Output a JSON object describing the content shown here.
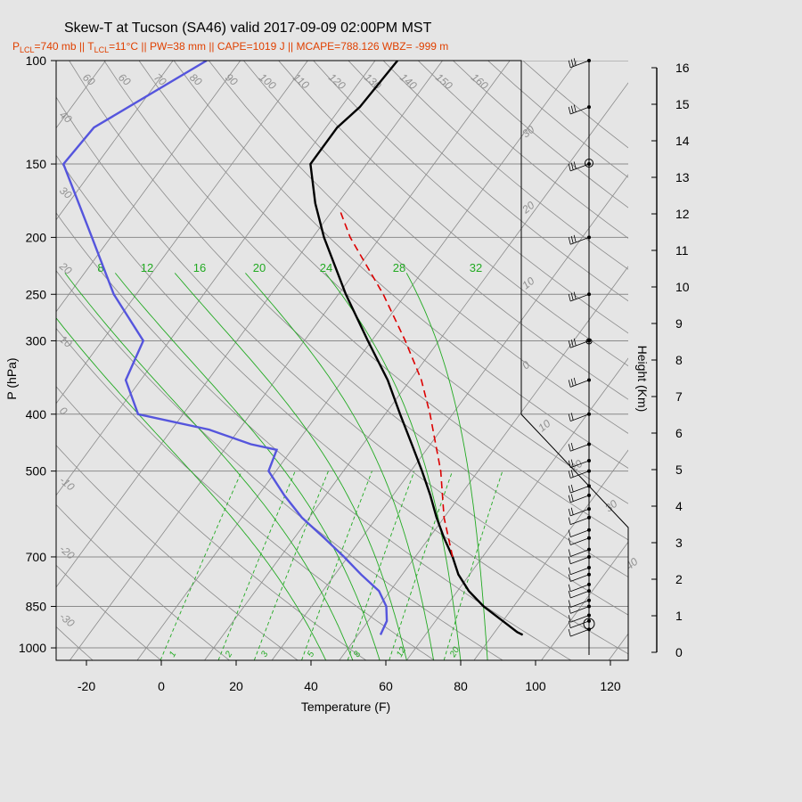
{
  "chart_data": {
    "type": "line",
    "title": "Skew-T at Tucson (SA46) valid 2017-09-09 02:00PM MST",
    "subtitle": {
      "p_lcl": "740 mb",
      "t_lcl": "11°C",
      "pw": "38 mm",
      "cape": "1019 J",
      "mcape": "788.126",
      "wbz": "-999 m"
    },
    "xlabel": "Temperature (F)",
    "ylabel": "P (hPa)",
    "y2label": "Height (Km)",
    "xlim": [
      -28,
      125
    ],
    "x_ticks": [
      -20,
      0,
      20,
      40,
      60,
      80,
      100,
      120
    ],
    "y_scale": "log",
    "ylim": [
      1050,
      100
    ],
    "pressure_ticks": [
      100,
      150,
      200,
      250,
      300,
      400,
      500,
      700,
      850,
      1000
    ],
    "height_ticks": [
      0,
      1,
      2,
      3,
      4,
      5,
      6,
      7,
      8,
      9,
      10,
      11,
      12,
      13,
      14,
      15,
      16
    ],
    "isotherm_labels_c": [
      -30,
      -20,
      -10,
      0,
      10,
      20,
      30,
      40
    ],
    "dry_adiabat_labels": [
      60,
      60,
      70,
      80,
      90,
      100,
      110,
      120,
      130,
      140,
      150,
      160
    ],
    "adiabat_left_labels": [
      40,
      30,
      20,
      10,
      0,
      -10,
      -20,
      -30
    ],
    "mixing_ratio_top_labels": [
      8,
      12,
      16,
      20,
      24,
      28,
      32
    ],
    "mixing_ratio_bottom_labels": [
      1,
      2,
      3,
      5,
      8,
      12,
      20
    ],
    "series": [
      {
        "name": "Temperature",
        "color": "#000000",
        "points": [
          [
            950,
            94
          ],
          [
            940,
            92
          ],
          [
            900,
            86
          ],
          [
            850,
            78
          ],
          [
            800,
            71
          ],
          [
            750,
            65
          ],
          [
            700,
            60
          ],
          [
            650,
            54
          ],
          [
            600,
            48
          ],
          [
            550,
            42
          ],
          [
            500,
            35
          ],
          [
            450,
            27
          ],
          [
            400,
            18
          ],
          [
            350,
            8
          ],
          [
            300,
            -5
          ],
          [
            250,
            -20
          ],
          [
            200,
            -37
          ],
          [
            175,
            -46
          ],
          [
            150,
            -55
          ],
          [
            130,
            -55
          ],
          [
            120,
            -53
          ],
          [
            100,
            -52
          ]
        ]
      },
      {
        "name": "Dewpoint",
        "color": "#5555dd",
        "points": [
          [
            950,
            56
          ],
          [
            900,
            55
          ],
          [
            850,
            52
          ],
          [
            800,
            47
          ],
          [
            750,
            39
          ],
          [
            700,
            31
          ],
          [
            650,
            22
          ],
          [
            600,
            12
          ],
          [
            550,
            3
          ],
          [
            500,
            -6
          ],
          [
            460,
            -8
          ],
          [
            450,
            -16
          ],
          [
            425,
            -30
          ],
          [
            400,
            -52
          ],
          [
            350,
            -62
          ],
          [
            300,
            -65
          ],
          [
            250,
            -82
          ],
          [
            200,
            -99
          ],
          [
            150,
            -121
          ],
          [
            130,
            -120
          ],
          [
            100,
            -103
          ]
        ]
      },
      {
        "name": "Parcel",
        "color": "#dd0000",
        "dashed": true,
        "points": [
          [
            700,
            60
          ],
          [
            600,
            50
          ],
          [
            500,
            40
          ],
          [
            400,
            26
          ],
          [
            350,
            17
          ],
          [
            300,
            5
          ],
          [
            250,
            -10
          ],
          [
            200,
            -30
          ],
          [
            180,
            -38
          ]
        ]
      }
    ],
    "wind_levels_hpa": [
      930,
      900,
      880,
      850,
      830,
      800,
      780,
      750,
      730,
      700,
      680,
      650,
      630,
      600,
      580,
      550,
      530,
      500,
      480,
      450,
      400,
      350,
      300,
      250,
      200,
      150,
      120,
      100
    ]
  }
}
